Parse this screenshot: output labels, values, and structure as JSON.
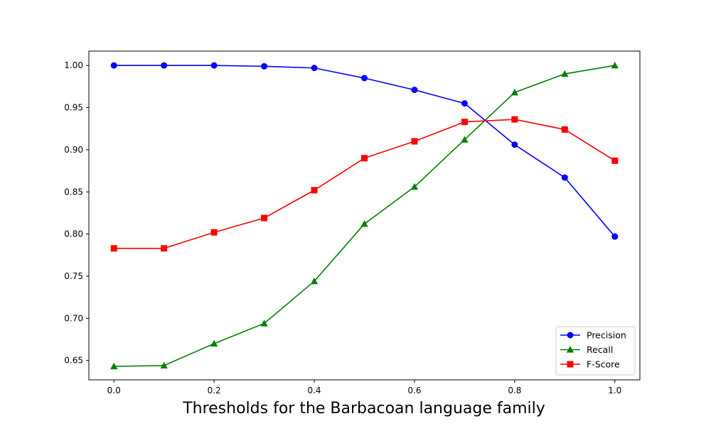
{
  "chart_data": {
    "type": "line",
    "title": "",
    "xlabel": "Thresholds for the Barbacoan language family",
    "ylabel": "",
    "x": [
      0.0,
      0.1,
      0.2,
      0.3,
      0.4,
      0.5,
      0.6,
      0.7,
      0.8,
      0.9,
      1.0
    ],
    "xlim": [
      -0.05,
      1.05
    ],
    "ylim": [
      0.627,
      1.017
    ],
    "xticks": [
      "0.0",
      "0.2",
      "0.4",
      "0.6",
      "0.8",
      "1.0"
    ],
    "xtick_values": [
      0.0,
      0.2,
      0.4,
      0.6,
      0.8,
      1.0
    ],
    "yticks": [
      "0.65",
      "0.70",
      "0.75",
      "0.80",
      "0.85",
      "0.90",
      "0.95",
      "1.00"
    ],
    "ytick_values": [
      0.65,
      0.7,
      0.75,
      0.8,
      0.85,
      0.9,
      0.95,
      1.0
    ],
    "grid": false,
    "legend_position": "lower-right",
    "series": [
      {
        "name": "Precision",
        "color": "#0000ff",
        "marker": "circle",
        "values": [
          1.0,
          1.0,
          1.0,
          0.999,
          0.997,
          0.985,
          0.971,
          0.955,
          0.906,
          0.867,
          0.797
        ]
      },
      {
        "name": "Recall",
        "color": "#008000",
        "marker": "triangle",
        "values": [
          0.643,
          0.644,
          0.67,
          0.694,
          0.744,
          0.812,
          0.856,
          0.912,
          0.968,
          0.99,
          1.0
        ]
      },
      {
        "name": "F-Score",
        "color": "#ff0000",
        "marker": "square",
        "values": [
          0.783,
          0.783,
          0.802,
          0.819,
          0.852,
          0.89,
          0.91,
          0.933,
          0.936,
          0.924,
          0.887
        ]
      }
    ]
  }
}
